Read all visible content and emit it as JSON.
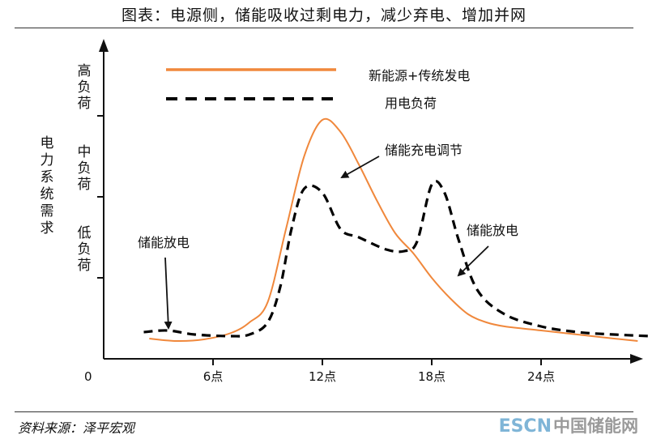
{
  "title": "图表：电源侧，储能吸收过剩电力，减少弃电、增加并网",
  "source": "资料来源：泽平宏观",
  "logo": {
    "part1": "ESCN",
    "part2": "中国储能网"
  },
  "colors": {
    "generation": "#F0883C",
    "load": "#000000"
  },
  "chart_data": {
    "type": "line",
    "xlabel": "",
    "ylabel": "电力系统需求",
    "origin_label": "0",
    "x_ticks": [
      {
        "x": 6,
        "label": "6点"
      },
      {
        "x": 12,
        "label": "12点"
      },
      {
        "x": 18,
        "label": "18点"
      },
      {
        "x": 24,
        "label": "24点"
      }
    ],
    "y_ticks": [
      {
        "y": 1,
        "label": "低负荷"
      },
      {
        "y": 2,
        "label": "中负荷"
      },
      {
        "y": 3,
        "label": "高负荷"
      }
    ],
    "xlim": [
      0,
      30
    ],
    "ylim": [
      0,
      4
    ],
    "legend_position": "top",
    "series": [
      {
        "name": "新能源+传统发电",
        "style": "solid",
        "color": "#F0883C",
        "points": [
          [
            2.5,
            0.25
          ],
          [
            4,
            0.22
          ],
          [
            5.5,
            0.24
          ],
          [
            7,
            0.32
          ],
          [
            8,
            0.45
          ],
          [
            9,
            0.7
          ],
          [
            10,
            1.6
          ],
          [
            11,
            2.5
          ],
          [
            12,
            2.95
          ],
          [
            13,
            2.8
          ],
          [
            14,
            2.4
          ],
          [
            15,
            1.95
          ],
          [
            16,
            1.55
          ],
          [
            17,
            1.3
          ],
          [
            18,
            1.0
          ],
          [
            19,
            0.75
          ],
          [
            20,
            0.55
          ],
          [
            21,
            0.45
          ],
          [
            22,
            0.4
          ],
          [
            24,
            0.35
          ],
          [
            26,
            0.3
          ],
          [
            28,
            0.25
          ],
          [
            29.3,
            0.22
          ]
        ]
      },
      {
        "name": "用电负荷",
        "style": "dashed",
        "color": "#000000",
        "points": [
          [
            2.2,
            0.33
          ],
          [
            3.5,
            0.35
          ],
          [
            5,
            0.3
          ],
          [
            7,
            0.28
          ],
          [
            8,
            0.3
          ],
          [
            9,
            0.45
          ],
          [
            9.7,
            0.9
          ],
          [
            10.3,
            1.6
          ],
          [
            11,
            2.1
          ],
          [
            12,
            2.05
          ],
          [
            13,
            1.6
          ],
          [
            14,
            1.5
          ],
          [
            15.5,
            1.35
          ],
          [
            16.5,
            1.33
          ],
          [
            17.2,
            1.45
          ],
          [
            18,
            2.15
          ],
          [
            18.7,
            2.05
          ],
          [
            19.5,
            1.45
          ],
          [
            20.5,
            0.85
          ],
          [
            22,
            0.55
          ],
          [
            24,
            0.4
          ],
          [
            26,
            0.33
          ],
          [
            28,
            0.3
          ],
          [
            30,
            0.28
          ]
        ]
      }
    ],
    "annotations": [
      {
        "text": "储能充电调节",
        "direction": "arrow-left-down"
      },
      {
        "text": "储能放电",
        "direction": "arrow-down"
      },
      {
        "text": "储能放电",
        "direction": "arrow-left-down"
      }
    ]
  }
}
